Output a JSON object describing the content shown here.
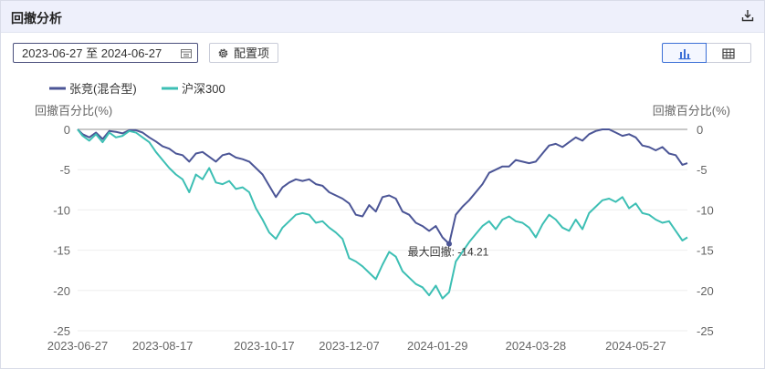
{
  "panel": {
    "title": "回撤分析",
    "download_icon": "download-icon",
    "date_range": "2023-06-27 至 2024-06-27",
    "calendar_icon": "calendar-icon",
    "config_label": "配置项",
    "config_icon": "gear-icon",
    "view_toggle": {
      "chart_icon": "bar-chart-icon",
      "table_icon": "table-icon",
      "active": "chart"
    }
  },
  "colors": {
    "fund": "#4b5596",
    "index": "#3dbfb4",
    "accent": "#3b6fd6"
  },
  "chart_data": {
    "type": "line",
    "legend": [
      "张竞(混合型)",
      "沪深300"
    ],
    "legend_position": "top-left",
    "ylabel_left": "回撤百分比(%)",
    "ylabel_right": "回撤百分比(%)",
    "ylim": [
      -25,
      0
    ],
    "yticks": [
      "0",
      "-5",
      "-10",
      "-15",
      "-20",
      "-25"
    ],
    "xlim": [
      "2023-06-27",
      "2024-06-27"
    ],
    "xticks": [
      "2023-06-27",
      "2023-08-17",
      "2023-10-17",
      "2023-12-07",
      "2024-01-29",
      "2024-03-28",
      "2024-05-27"
    ],
    "annotation": {
      "text": "最大回撤: -14.21",
      "date": "2024-02-05",
      "value": -14.21
    },
    "series": [
      {
        "name": "张竞(混合型)",
        "points": [
          [
            "2023-06-27",
            0
          ],
          [
            "2023-06-30",
            -0.6
          ],
          [
            "2023-07-04",
            -1.0
          ],
          [
            "2023-07-08",
            -0.4
          ],
          [
            "2023-07-12",
            -1.2
          ],
          [
            "2023-07-16",
            -0.2
          ],
          [
            "2023-07-20",
            -0.3
          ],
          [
            "2023-07-24",
            -0.5
          ],
          [
            "2023-07-28",
            -0.1
          ],
          [
            "2023-08-01",
            -0.1
          ],
          [
            "2023-08-05",
            -0.4
          ],
          [
            "2023-08-09",
            -1.0
          ],
          [
            "2023-08-13",
            -1.5
          ],
          [
            "2023-08-17",
            -2.1
          ],
          [
            "2023-08-21",
            -2.4
          ],
          [
            "2023-08-25",
            -3.0
          ],
          [
            "2023-08-29",
            -3.2
          ],
          [
            "2023-09-02",
            -4.0
          ],
          [
            "2023-09-06",
            -3.0
          ],
          [
            "2023-09-10",
            -2.8
          ],
          [
            "2023-09-14",
            -3.4
          ],
          [
            "2023-09-18",
            -4.0
          ],
          [
            "2023-09-22",
            -3.2
          ],
          [
            "2023-09-26",
            -3.0
          ],
          [
            "2023-09-30",
            -3.5
          ],
          [
            "2023-10-04",
            -3.7
          ],
          [
            "2023-10-08",
            -4.0
          ],
          [
            "2023-10-12",
            -4.8
          ],
          [
            "2023-10-16",
            -5.6
          ],
          [
            "2023-10-20",
            -7.0
          ],
          [
            "2023-10-24",
            -8.4
          ],
          [
            "2023-10-28",
            -7.2
          ],
          [
            "2023-11-01",
            -6.6
          ],
          [
            "2023-11-05",
            -6.2
          ],
          [
            "2023-11-09",
            -6.4
          ],
          [
            "2023-11-13",
            -6.2
          ],
          [
            "2023-11-17",
            -6.8
          ],
          [
            "2023-11-21",
            -7.0
          ],
          [
            "2023-11-25",
            -7.8
          ],
          [
            "2023-11-29",
            -8.2
          ],
          [
            "2023-12-03",
            -8.6
          ],
          [
            "2023-12-07",
            -9.2
          ],
          [
            "2023-12-11",
            -10.6
          ],
          [
            "2023-12-15",
            -10.8
          ],
          [
            "2023-12-19",
            -9.4
          ],
          [
            "2023-12-23",
            -10.2
          ],
          [
            "2023-12-27",
            -8.4
          ],
          [
            "2023-12-31",
            -8.2
          ],
          [
            "2024-01-04",
            -8.6
          ],
          [
            "2024-01-08",
            -10.2
          ],
          [
            "2024-01-12",
            -10.6
          ],
          [
            "2024-01-16",
            -11.6
          ],
          [
            "2024-01-20",
            -12.0
          ],
          [
            "2024-01-24",
            -12.6
          ],
          [
            "2024-01-28",
            -12.0
          ],
          [
            "2024-02-01",
            -13.4
          ],
          [
            "2024-02-05",
            -14.21
          ],
          [
            "2024-02-09",
            -10.6
          ],
          [
            "2024-02-13",
            -9.6
          ],
          [
            "2024-02-17",
            -8.8
          ],
          [
            "2024-02-21",
            -7.8
          ],
          [
            "2024-02-25",
            -6.8
          ],
          [
            "2024-02-29",
            -5.4
          ],
          [
            "2024-03-04",
            -5.0
          ],
          [
            "2024-03-08",
            -4.6
          ],
          [
            "2024-03-12",
            -4.6
          ],
          [
            "2024-03-16",
            -3.8
          ],
          [
            "2024-03-20",
            -4.0
          ],
          [
            "2024-03-24",
            -4.2
          ],
          [
            "2024-03-28",
            -4.0
          ],
          [
            "2024-04-01",
            -3.0
          ],
          [
            "2024-04-05",
            -2.0
          ],
          [
            "2024-04-09",
            -1.8
          ],
          [
            "2024-04-13",
            -2.2
          ],
          [
            "2024-04-17",
            -1.6
          ],
          [
            "2024-04-21",
            -1.0
          ],
          [
            "2024-04-25",
            -1.4
          ],
          [
            "2024-04-29",
            -0.6
          ],
          [
            "2024-05-03",
            -0.2
          ],
          [
            "2024-05-07",
            0
          ],
          [
            "2024-05-11",
            0
          ],
          [
            "2024-05-15",
            -0.4
          ],
          [
            "2024-05-19",
            -0.8
          ],
          [
            "2024-05-23",
            -0.6
          ],
          [
            "2024-05-27",
            -1.0
          ],
          [
            "2024-05-31",
            -2.0
          ],
          [
            "2024-06-04",
            -2.2
          ],
          [
            "2024-06-08",
            -2.6
          ],
          [
            "2024-06-12",
            -2.2
          ],
          [
            "2024-06-16",
            -3.0
          ],
          [
            "2024-06-20",
            -3.2
          ],
          [
            "2024-06-24",
            -4.4
          ],
          [
            "2024-06-27",
            -4.2
          ]
        ]
      },
      {
        "name": "沪深300",
        "points": [
          [
            "2023-06-27",
            0
          ],
          [
            "2023-06-30",
            -0.8
          ],
          [
            "2023-07-04",
            -1.4
          ],
          [
            "2023-07-08",
            -0.6
          ],
          [
            "2023-07-12",
            -1.6
          ],
          [
            "2023-07-16",
            -0.4
          ],
          [
            "2023-07-20",
            -1.0
          ],
          [
            "2023-07-24",
            -0.8
          ],
          [
            "2023-07-28",
            -0.2
          ],
          [
            "2023-08-01",
            -0.4
          ],
          [
            "2023-08-05",
            -1.0
          ],
          [
            "2023-08-09",
            -1.6
          ],
          [
            "2023-08-13",
            -2.8
          ],
          [
            "2023-08-17",
            -3.8
          ],
          [
            "2023-08-21",
            -4.8
          ],
          [
            "2023-08-25",
            -5.6
          ],
          [
            "2023-08-29",
            -6.2
          ],
          [
            "2023-09-02",
            -7.8
          ],
          [
            "2023-09-06",
            -5.6
          ],
          [
            "2023-09-10",
            -6.2
          ],
          [
            "2023-09-14",
            -4.8
          ],
          [
            "2023-09-18",
            -6.6
          ],
          [
            "2023-09-22",
            -6.8
          ],
          [
            "2023-09-26",
            -6.4
          ],
          [
            "2023-09-30",
            -7.4
          ],
          [
            "2023-10-04",
            -7.2
          ],
          [
            "2023-10-08",
            -7.8
          ],
          [
            "2023-10-12",
            -9.8
          ],
          [
            "2023-10-16",
            -11.2
          ],
          [
            "2023-10-20",
            -12.8
          ],
          [
            "2023-10-24",
            -13.6
          ],
          [
            "2023-10-28",
            -12.2
          ],
          [
            "2023-11-01",
            -11.4
          ],
          [
            "2023-11-05",
            -10.6
          ],
          [
            "2023-11-09",
            -10.4
          ],
          [
            "2023-11-13",
            -10.6
          ],
          [
            "2023-11-17",
            -11.6
          ],
          [
            "2023-11-21",
            -11.4
          ],
          [
            "2023-11-25",
            -12.2
          ],
          [
            "2023-11-29",
            -12.8
          ],
          [
            "2023-12-03",
            -13.6
          ],
          [
            "2023-12-07",
            -16.0
          ],
          [
            "2023-12-11",
            -16.4
          ],
          [
            "2023-12-15",
            -17.0
          ],
          [
            "2023-12-19",
            -17.8
          ],
          [
            "2023-12-23",
            -18.6
          ],
          [
            "2023-12-27",
            -16.8
          ],
          [
            "2023-12-31",
            -15.2
          ],
          [
            "2024-01-04",
            -15.8
          ],
          [
            "2024-01-08",
            -17.6
          ],
          [
            "2024-01-12",
            -18.4
          ],
          [
            "2024-01-16",
            -19.2
          ],
          [
            "2024-01-20",
            -19.6
          ],
          [
            "2024-01-24",
            -20.6
          ],
          [
            "2024-01-28",
            -19.4
          ],
          [
            "2024-02-01",
            -21.0
          ],
          [
            "2024-02-05",
            -20.2
          ],
          [
            "2024-02-09",
            -16.4
          ],
          [
            "2024-02-13",
            -15.2
          ],
          [
            "2024-02-17",
            -14.0
          ],
          [
            "2024-02-21",
            -13.0
          ],
          [
            "2024-02-25",
            -12.0
          ],
          [
            "2024-02-29",
            -11.4
          ],
          [
            "2024-03-04",
            -12.4
          ],
          [
            "2024-03-08",
            -11.2
          ],
          [
            "2024-03-12",
            -10.8
          ],
          [
            "2024-03-16",
            -11.4
          ],
          [
            "2024-03-20",
            -11.6
          ],
          [
            "2024-03-24",
            -12.2
          ],
          [
            "2024-03-28",
            -13.4
          ],
          [
            "2024-04-01",
            -11.8
          ],
          [
            "2024-04-05",
            -10.6
          ],
          [
            "2024-04-09",
            -11.2
          ],
          [
            "2024-04-13",
            -12.2
          ],
          [
            "2024-04-17",
            -12.6
          ],
          [
            "2024-04-21",
            -11.2
          ],
          [
            "2024-04-25",
            -12.4
          ],
          [
            "2024-04-29",
            -10.4
          ],
          [
            "2024-05-03",
            -9.6
          ],
          [
            "2024-05-07",
            -8.8
          ],
          [
            "2024-05-11",
            -8.6
          ],
          [
            "2024-05-15",
            -9.0
          ],
          [
            "2024-05-19",
            -8.4
          ],
          [
            "2024-05-23",
            -9.8
          ],
          [
            "2024-05-27",
            -9.2
          ],
          [
            "2024-05-31",
            -10.4
          ],
          [
            "2024-06-04",
            -10.6
          ],
          [
            "2024-06-08",
            -11.2
          ],
          [
            "2024-06-12",
            -11.6
          ],
          [
            "2024-06-16",
            -11.4
          ],
          [
            "2024-06-20",
            -12.6
          ],
          [
            "2024-06-24",
            -13.8
          ],
          [
            "2024-06-27",
            -13.4
          ]
        ]
      }
    ]
  }
}
